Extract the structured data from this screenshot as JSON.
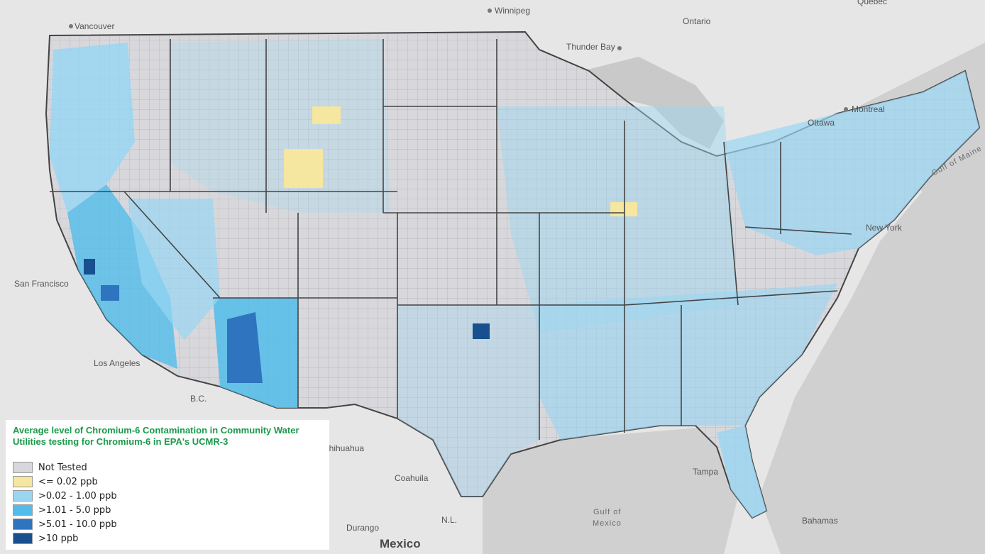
{
  "places": [
    {
      "name": "Winnipeg",
      "kind": "city"
    },
    {
      "name": "Vancouver",
      "kind": "city"
    },
    {
      "name": "Ontario",
      "kind": "region"
    },
    {
      "name": "Quebec",
      "kind": "region"
    },
    {
      "name": "Thunder Bay",
      "kind": "city"
    },
    {
      "name": "Montreal",
      "kind": "city"
    },
    {
      "name": "Ottawa",
      "kind": "city"
    },
    {
      "name": "Gulf of Maine",
      "kind": "water"
    },
    {
      "name": "New York",
      "kind": "city"
    },
    {
      "name": "San Francisco",
      "kind": "city"
    },
    {
      "name": "Los Angeles",
      "kind": "city"
    },
    {
      "name": "Chihuahua",
      "kind": "region"
    },
    {
      "name": "Coahuila",
      "kind": "region"
    },
    {
      "name": "Durango",
      "kind": "region"
    },
    {
      "name": "Mexico",
      "kind": "country"
    },
    {
      "name": "Gulf of",
      "kind": "water"
    },
    {
      "name": "Mexico",
      "kind": "water"
    },
    {
      "name": "Tampa",
      "kind": "city"
    },
    {
      "name": "Bahamas",
      "kind": "city"
    },
    {
      "name": "B.C.",
      "kind": "region"
    },
    {
      "name": "N.L.",
      "kind": "region"
    }
  ],
  "legend": {
    "title": "Average level of Chromium-6 Contamination in Community Water Utilities testing for Chromium-6 in EPA's UCMR-3",
    "items": [
      {
        "label": "Not Tested",
        "color": "#d8d8dc"
      },
      {
        "label": "<= 0.02 ppb",
        "color": "#f5e6a0"
      },
      {
        "label": ">0.02 - 1.00 ppb",
        "color": "#9ad6f2"
      },
      {
        "label": ">1.01 - 5.0 ppb",
        "color": "#52bdea"
      },
      {
        "label": ">5.01 - 10.0 ppb",
        "color": "#2e74bf"
      },
      {
        "label": ">10 ppb",
        "color": "#184f8f"
      }
    ]
  },
  "colors": {
    "land": "#dedede",
    "water": "#c9c9c9",
    "border": "#444444",
    "basemap_background": "#e6e6e6"
  }
}
